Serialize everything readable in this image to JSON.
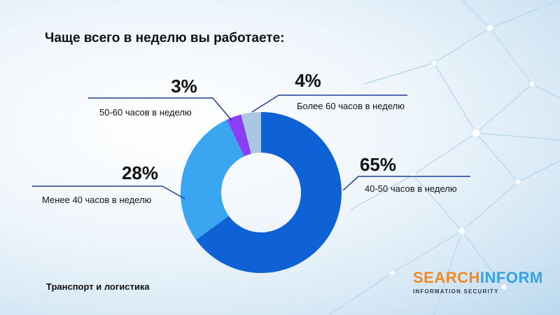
{
  "title": "Чаще всего в неделю вы работаете:",
  "footer": "Транспорт и логистика",
  "logo": {
    "part1": "SEARCH",
    "part2": "INFORM",
    "sub": "INFORMATION SECURITY"
  },
  "chart_data": {
    "type": "pie",
    "donut": true,
    "title": "Чаще всего в неделю вы работаете:",
    "slices": [
      {
        "label": "40-50 часов в неделю",
        "value": 65,
        "value_label": "65%",
        "color": "#0f62d6"
      },
      {
        "label": "Менее 40 часов в неделю",
        "value": 28,
        "value_label": "28%",
        "color": "#3aa6f2"
      },
      {
        "label": "50-60 часов в неделю",
        "value": 3,
        "value_label": "3%",
        "color": "#8a3ff5"
      },
      {
        "label": "Более 60 часов в неделю",
        "value": 4,
        "value_label": "4%",
        "color": "#a9c6e3"
      }
    ],
    "legend": "callouts"
  }
}
